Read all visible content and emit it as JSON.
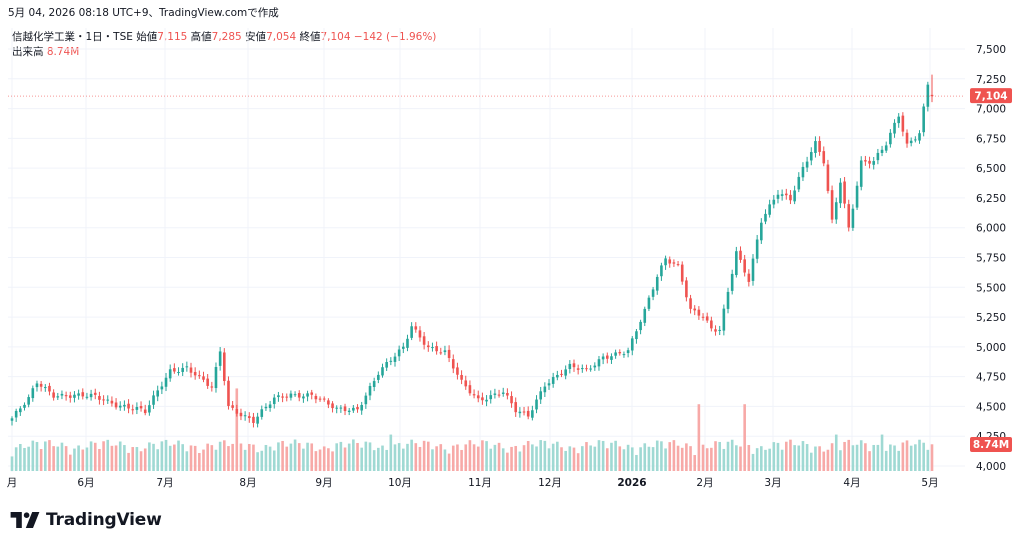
{
  "caption": "5月 04, 2026 08:18 UTC+9、TradingView.comで作成",
  "legend": {
    "symbol": "信越化学工業・1日・TSE",
    "open_label": "始値",
    "open": "7,115",
    "high_label": "高値",
    "high": "7,285",
    "low_label": "安値",
    "low": "7,054",
    "close_label": "終値",
    "close": "7,104",
    "change": "−142 (−1.96%)",
    "volume_label": "出来高",
    "volume": "8.74M"
  },
  "brand": "TradingView",
  "colors": {
    "up": "#26a69a",
    "down": "#ef5350",
    "up_vol": "#9fd9d3",
    "down_vol": "#f7a9a7",
    "grid": "#f0f3fa",
    "text": "#131722"
  },
  "chart_data": {
    "type": "candlestick",
    "y_ticks": [
      "7,500",
      "7,250",
      "7,000",
      "6,750",
      "6,500",
      "6,250",
      "6,000",
      "5,750",
      "5,500",
      "5,250",
      "5,000",
      "4,750",
      "4,500",
      "4,250",
      "4,000"
    ],
    "x_ticks": [
      "月",
      "6月",
      "7月",
      "8月",
      "9月",
      "10月",
      "11月",
      "12月",
      "2026",
      "2月",
      "3月",
      "4月",
      "5月"
    ],
    "ylim": [
      4000,
      7500
    ],
    "last_price_label": "7,104",
    "last_volume_label": "8.74M",
    "volume_max": 70,
    "anchors": [
      {
        "i": 0,
        "c": 4400
      },
      {
        "i": 4,
        "c": 4560
      },
      {
        "i": 6,
        "c": 4700
      },
      {
        "i": 10,
        "c": 4600
      },
      {
        "i": 20,
        "c": 4580
      },
      {
        "i": 25,
        "c": 4520
      },
      {
        "i": 30,
        "c": 4480
      },
      {
        "i": 32,
        "c": 4450
      },
      {
        "i": 38,
        "c": 4800
      },
      {
        "i": 42,
        "c": 4830
      },
      {
        "i": 48,
        "c": 4650
      },
      {
        "i": 50,
        "c": 4960
      },
      {
        "i": 52,
        "c": 4500
      },
      {
        "i": 58,
        "c": 4380
      },
      {
        "i": 63,
        "c": 4560
      },
      {
        "i": 67,
        "c": 4600
      },
      {
        "i": 72,
        "c": 4600
      },
      {
        "i": 78,
        "c": 4470
      },
      {
        "i": 83,
        "c": 4480
      },
      {
        "i": 88,
        "c": 4780
      },
      {
        "i": 94,
        "c": 4990
      },
      {
        "i": 96,
        "c": 5180
      },
      {
        "i": 100,
        "c": 5000
      },
      {
        "i": 104,
        "c": 4950
      },
      {
        "i": 108,
        "c": 4700
      },
      {
        "i": 112,
        "c": 4560
      },
      {
        "i": 118,
        "c": 4620
      },
      {
        "i": 121,
        "c": 4460
      },
      {
        "i": 124,
        "c": 4420
      },
      {
        "i": 128,
        "c": 4690
      },
      {
        "i": 134,
        "c": 4830
      },
      {
        "i": 138,
        "c": 4800
      },
      {
        "i": 142,
        "c": 4920
      },
      {
        "i": 148,
        "c": 4960
      },
      {
        "i": 152,
        "c": 5300
      },
      {
        "i": 155,
        "c": 5600
      },
      {
        "i": 157,
        "c": 5750
      },
      {
        "i": 160,
        "c": 5680
      },
      {
        "i": 163,
        "c": 5300
      },
      {
        "i": 166,
        "c": 5250
      },
      {
        "i": 168,
        "c": 5150
      },
      {
        "i": 170,
        "c": 5150
      },
      {
        "i": 174,
        "c": 5800
      },
      {
        "i": 177,
        "c": 5550
      },
      {
        "i": 180,
        "c": 6050
      },
      {
        "i": 184,
        "c": 6300
      },
      {
        "i": 187,
        "c": 6250
      },
      {
        "i": 190,
        "c": 6500
      },
      {
        "i": 193,
        "c": 6700
      },
      {
        "i": 195,
        "c": 6550
      },
      {
        "i": 197,
        "c": 6050
      },
      {
        "i": 199,
        "c": 6400
      },
      {
        "i": 201,
        "c": 6000
      },
      {
        "i": 204,
        "c": 6550
      },
      {
        "i": 207,
        "c": 6550
      },
      {
        "i": 210,
        "c": 6700
      },
      {
        "i": 213,
        "c": 6950
      },
      {
        "i": 215,
        "c": 6700
      },
      {
        "i": 218,
        "c": 6800
      },
      {
        "i": 220,
        "c": 7200
      },
      {
        "i": 221,
        "c": 7104
      }
    ],
    "volume_spikes": [
      {
        "i": 54,
        "v": 68
      },
      {
        "i": 91,
        "v": 30
      },
      {
        "i": 111,
        "v": 22
      },
      {
        "i": 165,
        "v": 55
      },
      {
        "i": 176,
        "v": 55
      },
      {
        "i": 198,
        "v": 30
      },
      {
        "i": 209,
        "v": 30
      },
      {
        "i": 221,
        "v": 22
      }
    ]
  }
}
